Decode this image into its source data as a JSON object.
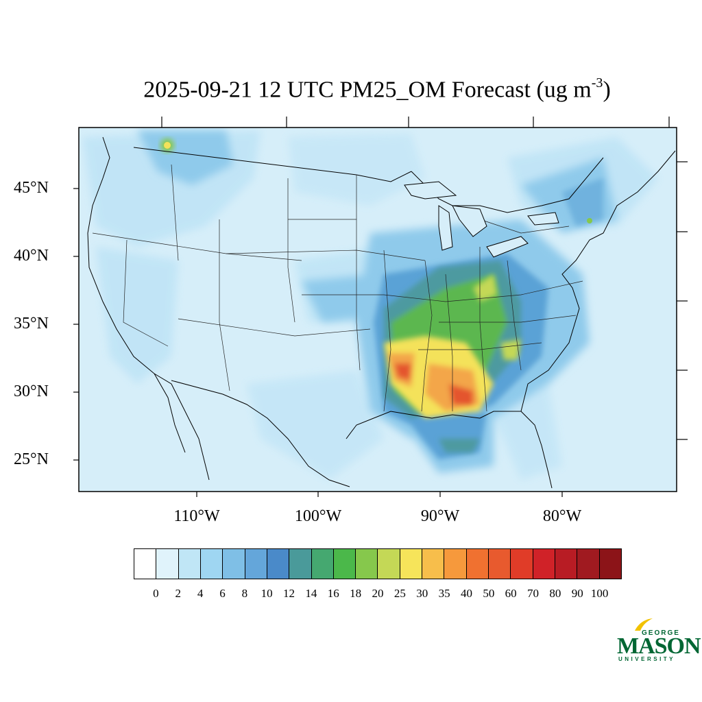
{
  "title": {
    "main": "2025-09-21 12 UTC PM25_OM Forecast (ug m",
    "superscript": "-3",
    "end": ")"
  },
  "lat_labels": [
    "45°N",
    "40°N",
    "35°N",
    "30°N",
    "25°N"
  ],
  "lon_labels": [
    "110°W",
    "100°W",
    "90°W",
    "80°W"
  ],
  "colorbar": {
    "labels": [
      "0",
      "2",
      "4",
      "6",
      "8",
      "10",
      "12",
      "14",
      "16",
      "18",
      "20",
      "25",
      "30",
      "35",
      "40",
      "50",
      "60",
      "70",
      "80",
      "90",
      "100"
    ],
    "colors": [
      "#ffffff",
      "#e0f3fb",
      "#c0e6f6",
      "#9fd6f2",
      "#7fbfe6",
      "#64a6da",
      "#4a8ac9",
      "#4a9a9a",
      "#45a870",
      "#4bb84a",
      "#86c84c",
      "#c4d856",
      "#f6e45a",
      "#f7be4b",
      "#f6993c",
      "#f07130",
      "#e85a2e",
      "#e03c28",
      "#d02228",
      "#b81c24",
      "#a01a20",
      "#8c1418"
    ]
  },
  "map_colors": {
    "background": "#d6eef9",
    "low": "#bfe4f6",
    "mid": "#8fcaeb",
    "blue": "#5aa2d6",
    "teal": "#4d9aa0",
    "green": "#5cb74f",
    "yellow": "#f4e25a",
    "orange": "#f3a64a",
    "red": "#e4552e"
  },
  "logo": {
    "top": "GEORGE",
    "main": "MASON",
    "bottom": "UNIVERSITY"
  }
}
